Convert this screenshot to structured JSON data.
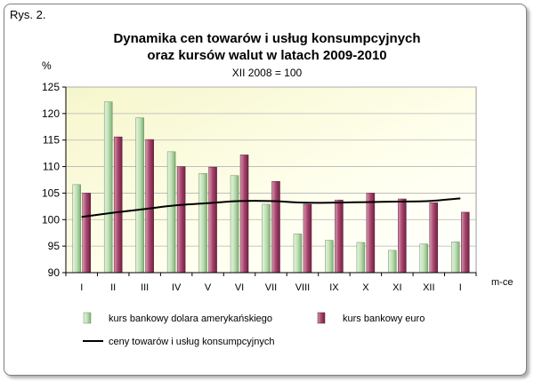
{
  "figure_label": "Rys. 2.",
  "chart_data": {
    "type": "bar",
    "title_line1": "Dynamika cen towarów i usług konsumpcyjnych",
    "title_line2": "oraz kursów walut w latach 2009-2010",
    "subtitle": "XII 2008 = 100",
    "ylabel": "%",
    "xlabel": "m-ce",
    "ylim": [
      90,
      125
    ],
    "yticks": [
      90,
      95,
      100,
      105,
      110,
      115,
      120,
      125
    ],
    "categories": [
      "I",
      "II",
      "III",
      "IV",
      "V",
      "VI",
      "VII",
      "VIII",
      "IX",
      "X",
      "XI",
      "XII",
      "I"
    ],
    "series": [
      {
        "name": "kurs bankowy dolara amerykańskiego",
        "type": "bar",
        "color": "#c8e6c0",
        "values": [
          106.6,
          122.2,
          119.2,
          112.8,
          108.7,
          108.3,
          102.9,
          97.3,
          96.1,
          95.7,
          94.2,
          95.4,
          95.8
        ]
      },
      {
        "name": "kurs bankowy euro",
        "type": "bar",
        "color": "#a8436a",
        "values": [
          105.0,
          115.6,
          115.1,
          110.0,
          109.9,
          112.2,
          107.2,
          102.9,
          103.7,
          105.0,
          103.9,
          103.2,
          101.4
        ]
      },
      {
        "name": "ceny towarów i usług konsumpcyjnych",
        "type": "line",
        "color": "#000000",
        "values": [
          100.5,
          101.3,
          102.0,
          102.7,
          103.1,
          103.5,
          103.5,
          103.2,
          103.2,
          103.3,
          103.4,
          103.5,
          104.0
        ]
      }
    ],
    "grid": true,
    "legend_position": "bottom"
  }
}
